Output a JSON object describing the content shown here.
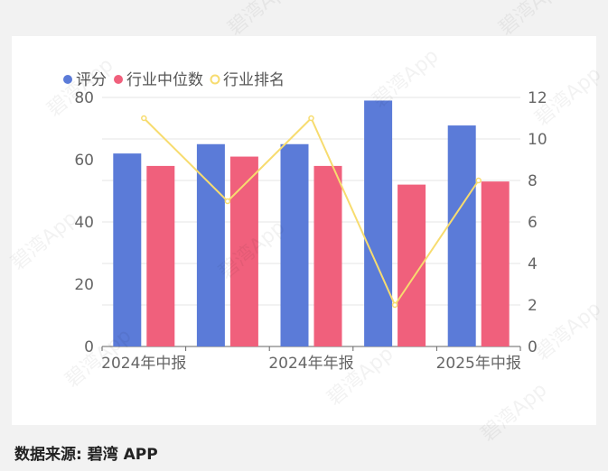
{
  "chart_data": {
    "type": "bar",
    "categories": [
      "2024年中报",
      "",
      "2024年年报",
      "",
      "2025年中报"
    ],
    "series": [
      {
        "name": "评分",
        "values": [
          62,
          65,
          65,
          79,
          71
        ],
        "color": "#5b7bd8",
        "axis": "left"
      },
      {
        "name": "行业中位数",
        "values": [
          58,
          61,
          58,
          52,
          53
        ],
        "color": "#f0607c",
        "axis": "left"
      },
      {
        "name": "行业排名",
        "values": [
          11,
          7,
          11,
          2,
          8
        ],
        "color": "#f7dc6f",
        "axis": "right",
        "render": "line"
      }
    ],
    "y_left": {
      "min": 0,
      "max": 80,
      "ticks": [
        0,
        20,
        40,
        60,
        80
      ]
    },
    "y_right": {
      "min": 0,
      "max": 12,
      "ticks": [
        0,
        2,
        4,
        6,
        8,
        10,
        12
      ]
    },
    "legend_position": "top-left",
    "grid": true
  },
  "footer": {
    "source": "数据来源: 碧湾 APP"
  },
  "watermark": "碧湾App"
}
